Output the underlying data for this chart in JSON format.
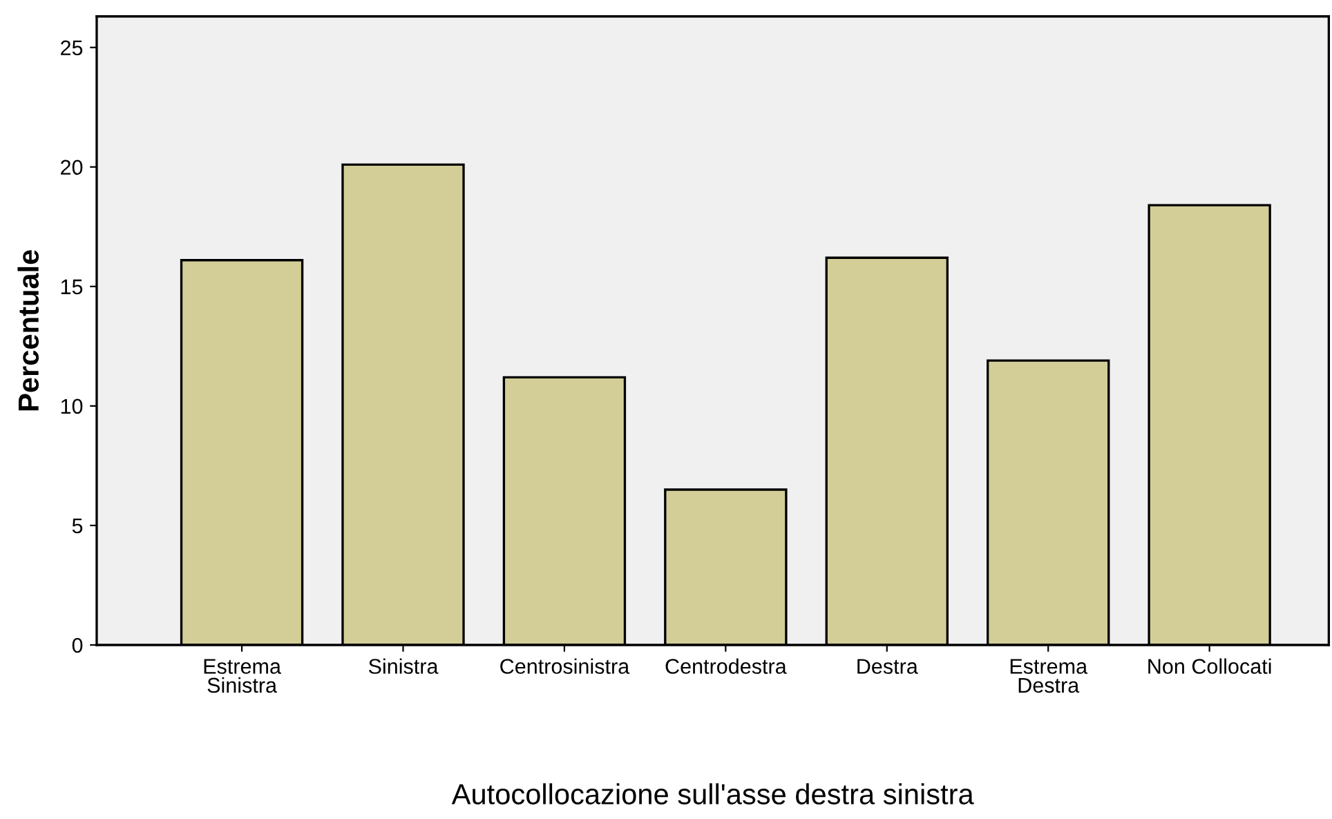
{
  "chart_data": {
    "type": "bar",
    "categories": [
      "Estrema\nSinistra",
      "Sinistra",
      "Centrosinistra",
      "Centrodestra",
      "Destra",
      "Estrema\nDestra",
      "Non Collocati"
    ],
    "values": [
      16.1,
      20.1,
      11.2,
      6.5,
      16.2,
      11.9,
      18.4
    ],
    "color": "#d3ce97",
    "xlabel": "Autocollocazione sull'asse destra sinistra",
    "ylabel": "Percentuale",
    "ylim": [
      0,
      26.3
    ],
    "yticks": [
      0,
      5,
      10,
      15,
      20,
      25
    ],
    "grid": false,
    "legend": false
  }
}
